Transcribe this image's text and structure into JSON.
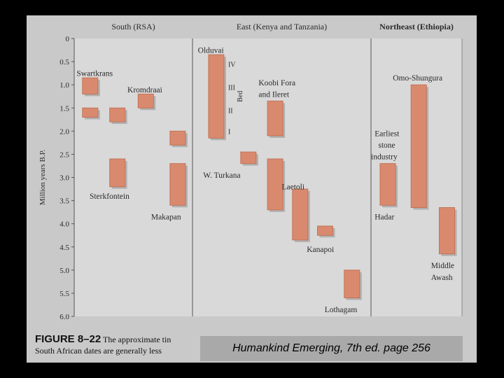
{
  "chart_data": {
    "type": "range-bar",
    "ylabel": "Million years B.P.",
    "yticks": [
      "0",
      "0.5",
      "1.0",
      "1.5",
      "2.0",
      "2.5",
      "3.0",
      "3.5",
      "4.0",
      "4.5",
      "5.0",
      "5.5",
      "6.0"
    ],
    "ylim": [
      0,
      6.0
    ],
    "regions": [
      {
        "name": "South (RSA)"
      },
      {
        "name": "East (Kenya and Tanzania)"
      },
      {
        "name": "Northeast (Ethiopia)"
      }
    ],
    "bars": [
      {
        "region": 0,
        "slot": 0.07,
        "start": 0.85,
        "end": 1.2
      },
      {
        "region": 0,
        "slot": 0.07,
        "start": 1.5,
        "end": 1.7
      },
      {
        "region": 0,
        "slot": 0.3,
        "start": 1.5,
        "end": 1.8
      },
      {
        "region": 0,
        "slot": 0.54,
        "start": 1.2,
        "end": 1.5
      },
      {
        "region": 0,
        "slot": 0.81,
        "start": 2.0,
        "end": 2.3
      },
      {
        "region": 0,
        "slot": 0.3,
        "start": 2.6,
        "end": 3.2
      },
      {
        "region": 0,
        "slot": 0.81,
        "start": 2.7,
        "end": 3.6
      },
      {
        "region": 1,
        "slot": 0.09,
        "start": 0.35,
        "end": 2.15
      },
      {
        "region": 1,
        "slot": 0.42,
        "start": 1.35,
        "end": 2.1
      },
      {
        "region": 1,
        "slot": 0.27,
        "start": 2.45,
        "end": 2.7
      },
      {
        "region": 1,
        "slot": 0.42,
        "start": 2.6,
        "end": 3.7
      },
      {
        "region": 1,
        "slot": 0.56,
        "start": 3.25,
        "end": 4.35
      },
      {
        "region": 1,
        "slot": 0.7,
        "start": 4.05,
        "end": 4.25
      },
      {
        "region": 1,
        "slot": 0.85,
        "start": 5.0,
        "end": 5.6
      },
      {
        "region": 2,
        "slot": 0.1,
        "start": 2.7,
        "end": 3.6
      },
      {
        "region": 2,
        "slot": 0.44,
        "start": 1.0,
        "end": 3.65
      },
      {
        "region": 2,
        "slot": 0.75,
        "start": 3.65,
        "end": 4.65
      }
    ],
    "site_labels": [
      {
        "text": "Swartkrans",
        "region": 0,
        "slot": 0.02,
        "y": 0.75
      },
      {
        "text": "Kromdraai",
        "region": 0,
        "slot": 0.45,
        "y": 1.1
      },
      {
        "text": "Sterkfontein",
        "region": 0,
        "slot": 0.13,
        "y": 3.4
      },
      {
        "text": "Makapan",
        "region": 0,
        "slot": 0.65,
        "y": 3.85
      },
      {
        "text": "Olduvai",
        "region": 1,
        "slot": 0.03,
        "y": 0.25
      },
      {
        "text": "Koobi Fora",
        "region": 1,
        "slot": 0.37,
        "y": 0.95
      },
      {
        "text": "and Ileret",
        "region": 1,
        "slot": 0.37,
        "y": 1.2
      },
      {
        "text": "W. Turkana",
        "region": 1,
        "slot": 0.06,
        "y": 2.95
      },
      {
        "text": "Laetoli",
        "region": 1,
        "slot": 0.5,
        "y": 3.2
      },
      {
        "text": "Kanapoi",
        "region": 1,
        "slot": 0.64,
        "y": 4.55
      },
      {
        "text": "Lothagam",
        "region": 1,
        "slot": 0.74,
        "y": 5.85
      },
      {
        "text": "Omo-Shungura",
        "region": 2,
        "slot": 0.24,
        "y": 0.85
      },
      {
        "text": "Earliest",
        "region": 2,
        "slot": 0.04,
        "y": 2.05
      },
      {
        "text": "stone",
        "region": 2,
        "slot": 0.08,
        "y": 2.3
      },
      {
        "text": "industry",
        "region": 2,
        "slot": 0.0,
        "y": 2.55
      },
      {
        "text": "Hadar",
        "region": 2,
        "slot": 0.04,
        "y": 3.85
      },
      {
        "text": "Middle",
        "region": 2,
        "slot": 0.66,
        "y": 4.9
      },
      {
        "text": "Awash",
        "region": 2,
        "slot": 0.66,
        "y": 5.15
      }
    ],
    "olduvai_beds": {
      "label": "Bed",
      "marks": [
        "IV",
        "III",
        "II",
        "I"
      ],
      "y": [
        0.55,
        1.05,
        1.55,
        2.0
      ]
    },
    "bar_color": "#d98a6e",
    "bar_edge_color": "#c27357",
    "bar_shadow_color": "#8f8f8f",
    "panel_color": "#d9d9d9"
  },
  "caption": {
    "figure_number": "FIGURE 8–22",
    "line1_text": "The approximate tin",
    "line2_text": "South African dates are generally less"
  },
  "credit": "Humankind Emerging, 7th ed. page 256"
}
